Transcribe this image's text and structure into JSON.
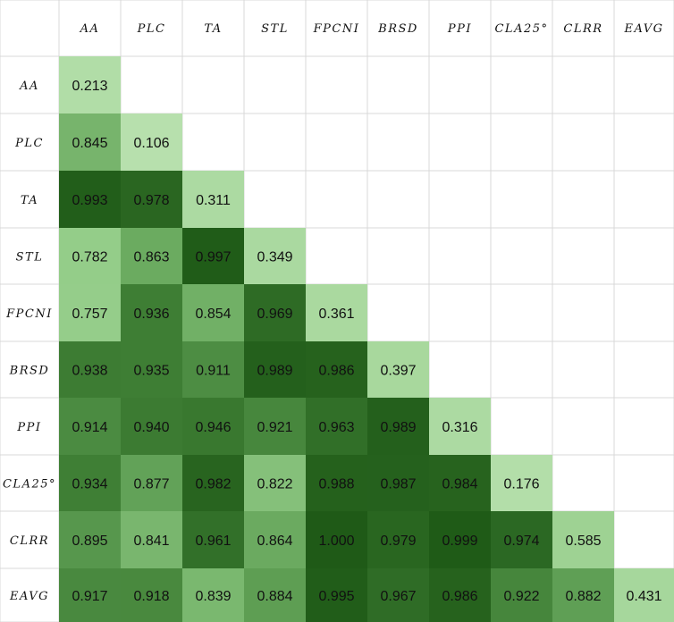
{
  "chart_data": {
    "type": "heatmap",
    "title": "",
    "variables": [
      "AA",
      "PLC",
      "TA",
      "STL",
      "FPCNI",
      "BRSD",
      "PPI",
      "CLA25°",
      "CLRR",
      "EAVG"
    ],
    "matrix": [
      [
        "0.213"
      ],
      [
        "0.845",
        "0.106"
      ],
      [
        "0.993",
        "0.978",
        "0.311"
      ],
      [
        "0.782",
        "0.863",
        "0.997",
        "0.349"
      ],
      [
        "0.757",
        "0.936",
        "0.854",
        "0.969",
        "0.361"
      ],
      [
        "0.938",
        "0.935",
        "0.911",
        "0.989",
        "0.986",
        "0.397"
      ],
      [
        "0.914",
        "0.940",
        "0.946",
        "0.921",
        "0.963",
        "0.989",
        "0.316"
      ],
      [
        "0.934",
        "0.877",
        "0.982",
        "0.822",
        "0.988",
        "0.987",
        "0.984",
        "0.176"
      ],
      [
        "0.895",
        "0.841",
        "0.961",
        "0.864",
        "1.000",
        "0.979",
        "0.999",
        "0.974",
        "0.585"
      ],
      [
        "0.917",
        "0.918",
        "0.839",
        "0.884",
        "0.995",
        "0.967",
        "0.986",
        "0.922",
        "0.882",
        "0.431"
      ]
    ],
    "shape": "lower-triangular",
    "colormap": [
      "#b7e0ad",
      "#93cc88",
      "#69a95e",
      "#3f7f35",
      "#1f5a17"
    ],
    "grid": true,
    "legend": "none"
  }
}
